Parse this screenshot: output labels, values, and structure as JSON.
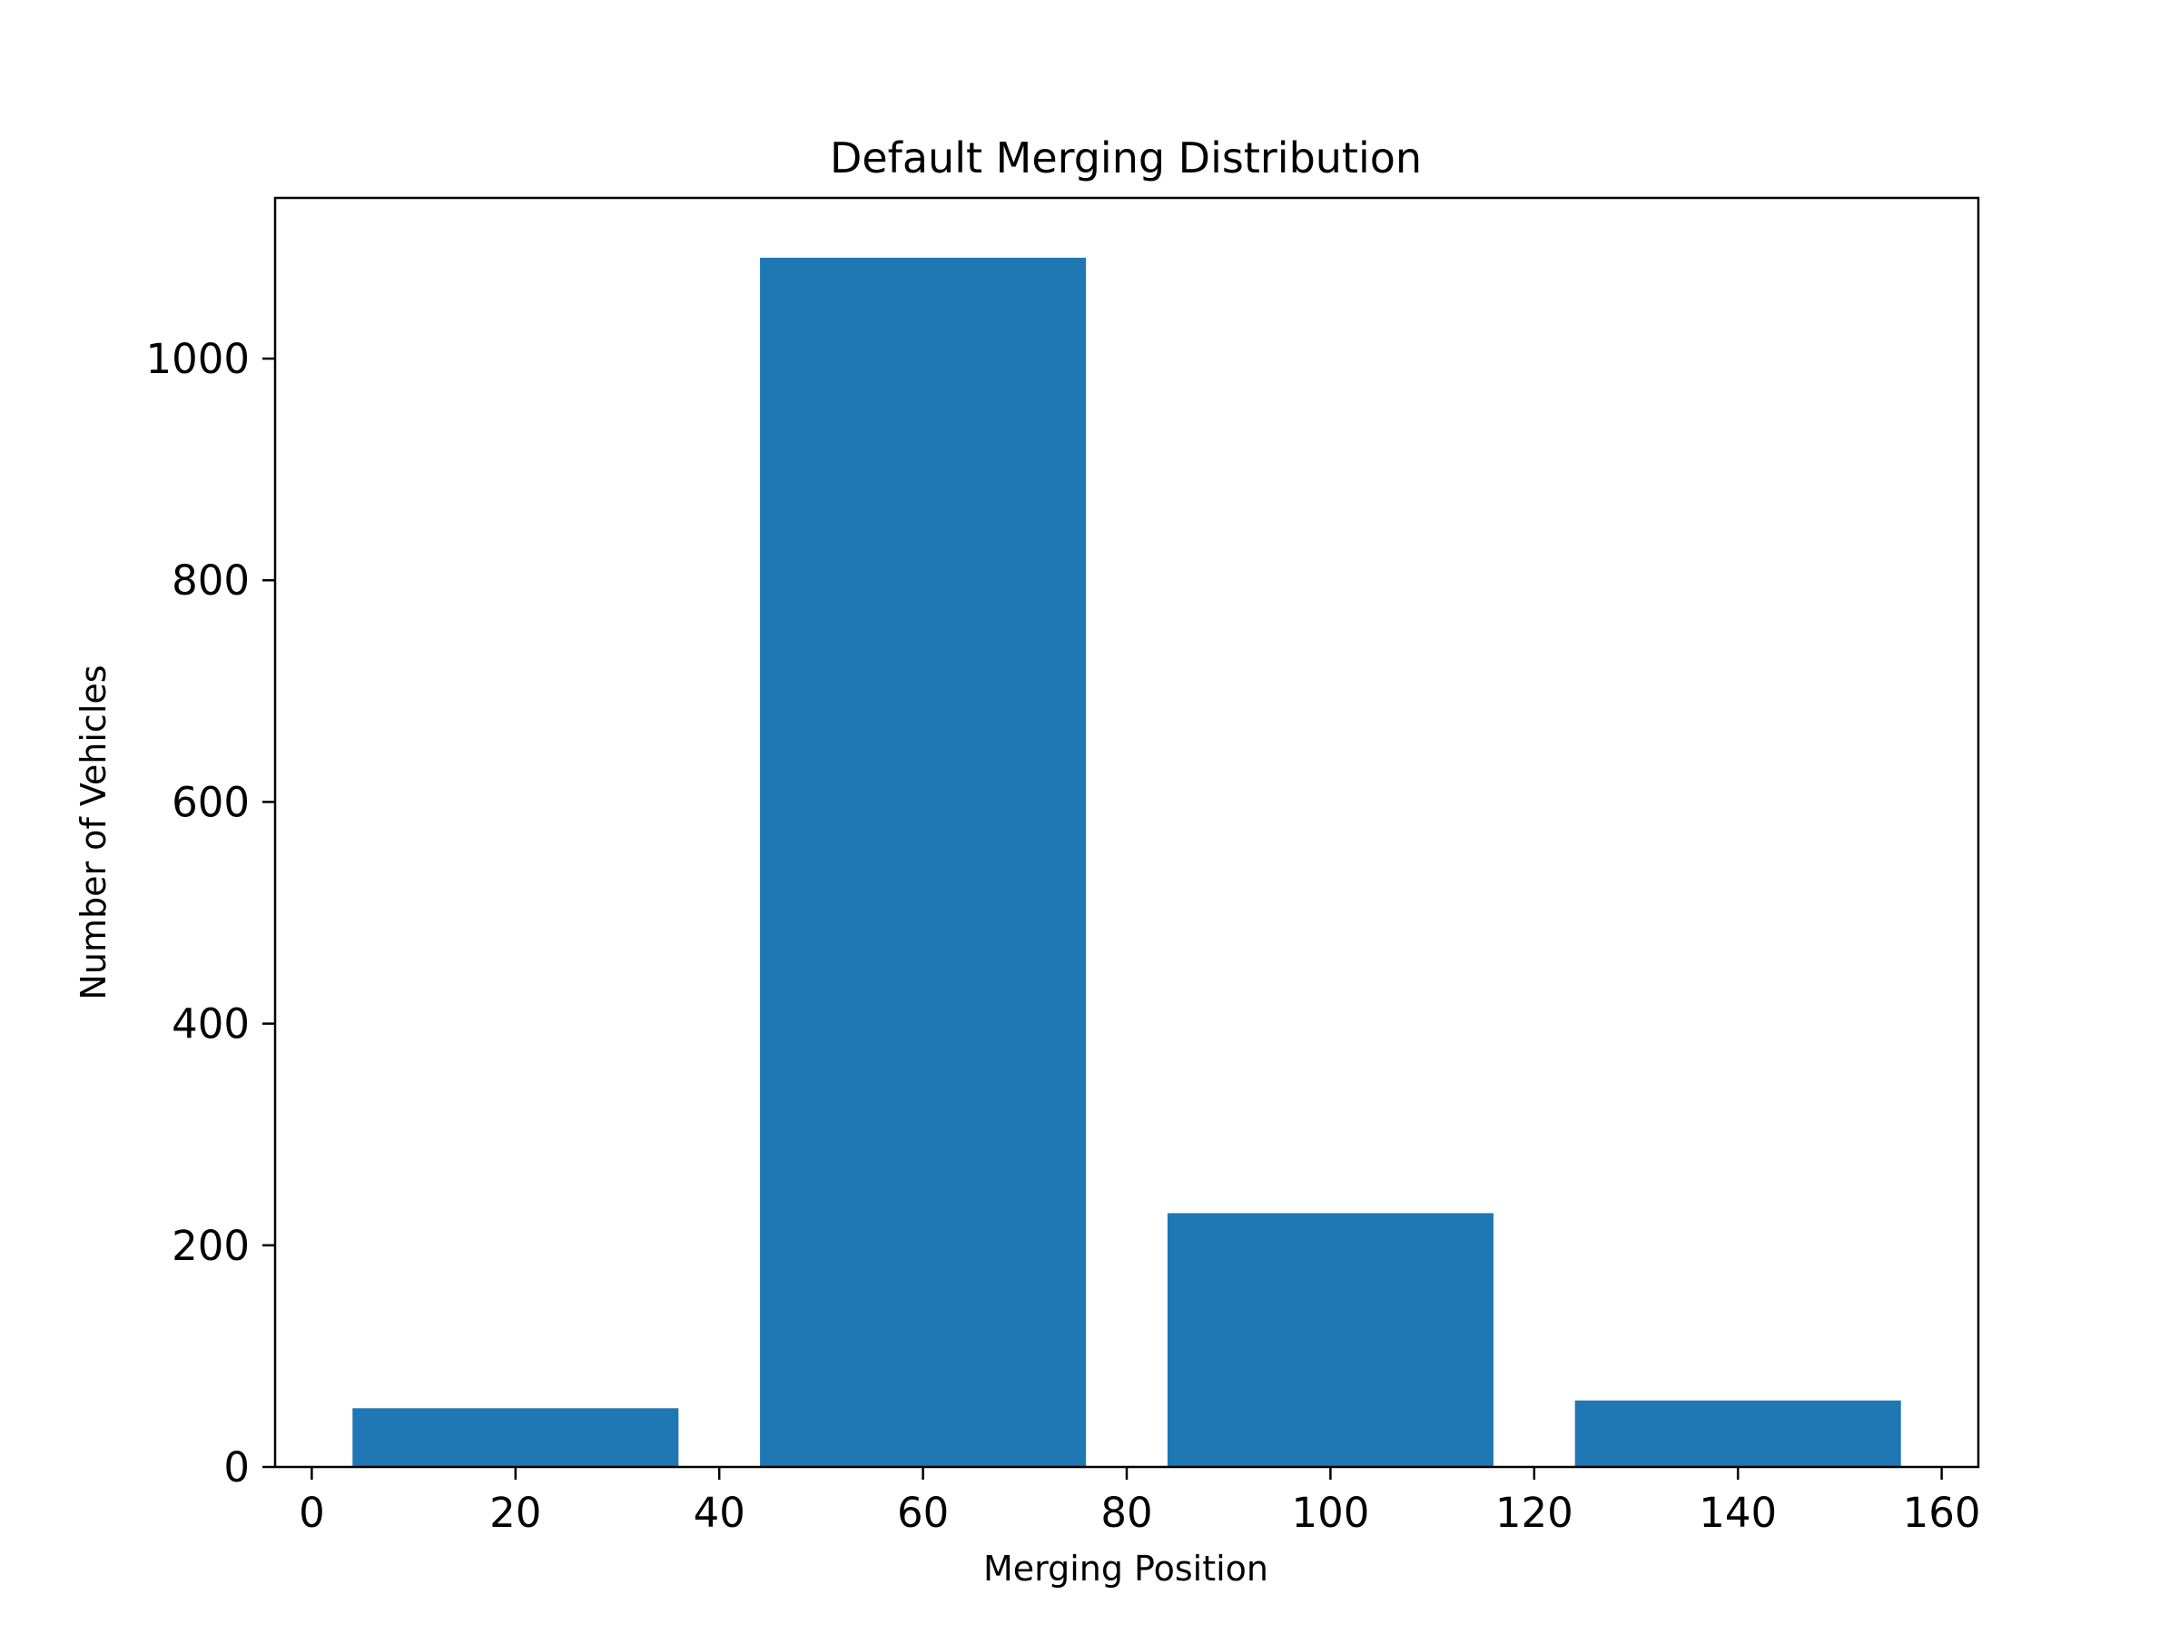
{
  "chart_data": {
    "type": "bar",
    "title": "Default Merging Distribution",
    "xlabel": "Merging Position",
    "ylabel": "Number of Vehicles",
    "bars": [
      {
        "x_center": 20,
        "width": 32,
        "value": 53
      },
      {
        "x_center": 60,
        "width": 32,
        "value": 1091
      },
      {
        "x_center": 100,
        "width": 32,
        "value": 229
      },
      {
        "x_center": 140,
        "width": 32,
        "value": 60
      }
    ],
    "xlim": [
      -3.6,
      163.6
    ],
    "ylim": [
      0,
      1145
    ],
    "xticks": [
      0,
      20,
      40,
      60,
      80,
      100,
      120,
      140,
      160
    ],
    "xtick_labels": [
      "0",
      "20",
      "40",
      "60",
      "80",
      "100",
      "120",
      "140",
      "160"
    ],
    "yticks": [
      0,
      200,
      400,
      600,
      800,
      1000
    ],
    "ytick_labels": [
      "0",
      "200",
      "400",
      "600",
      "800",
      "1000"
    ],
    "grid": false,
    "colors": {
      "bar": "#1f77b4",
      "axes": "#000000"
    }
  }
}
